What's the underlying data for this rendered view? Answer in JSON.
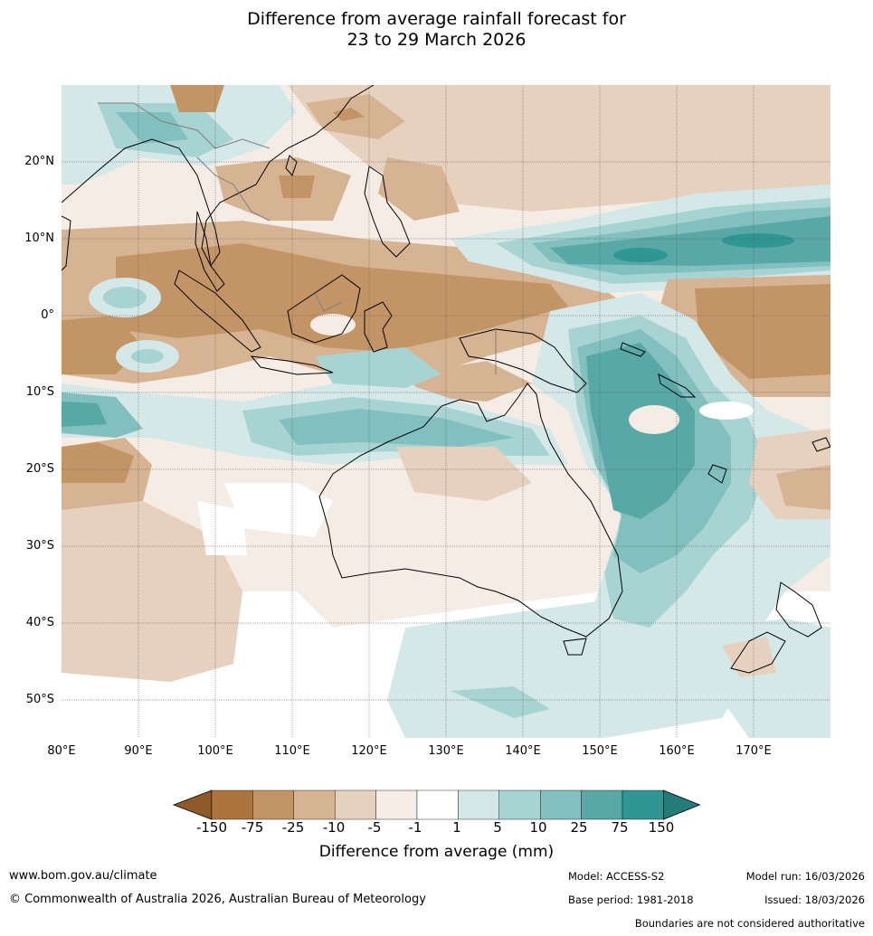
{
  "title": {
    "line1": "Difference from average rainfall forecast for",
    "line2": "23 to 29 March 2026"
  },
  "map": {
    "region": "Australia and surrounds",
    "lat_labels": [
      "20°N",
      "10°N",
      "0°",
      "10°S",
      "20°S",
      "30°S",
      "40°S",
      "50°S"
    ],
    "lon_labels": [
      "80°E",
      "90°E",
      "100°E",
      "110°E",
      "120°E",
      "130°E",
      "140°E",
      "150°E",
      "160°E",
      "170°E"
    ],
    "lon_range": [
      80,
      180
    ],
    "lat_range": [
      -55,
      30
    ]
  },
  "legend": {
    "title": "Difference from average (mm)",
    "ticks": [
      "-150",
      "-75",
      "-25",
      "-10",
      "-5",
      "-1",
      "1",
      "5",
      "10",
      "25",
      "75",
      "150"
    ],
    "colors": [
      "#8f5a2a",
      "#ad7440",
      "#c39465",
      "#d6b493",
      "#e6d1bf",
      "#f5ece6",
      "#ffffff",
      "#d4e8e7",
      "#a7d3d2",
      "#81c0bf",
      "#57a8a7",
      "#2f9693",
      "#257b79"
    ]
  },
  "footer": {
    "website": "www.bom.gov.au/climate",
    "copyright": "© Commonwealth of Australia 2026, Australian Bureau of Meteorology",
    "model": "Model: ACCESS-S2",
    "base_period": "Base period: 1981-2018",
    "model_run": "Model run: 16/03/2026",
    "issued": "Issued: 18/03/2026",
    "boundaries": "Boundaries are not considered authoritative"
  }
}
